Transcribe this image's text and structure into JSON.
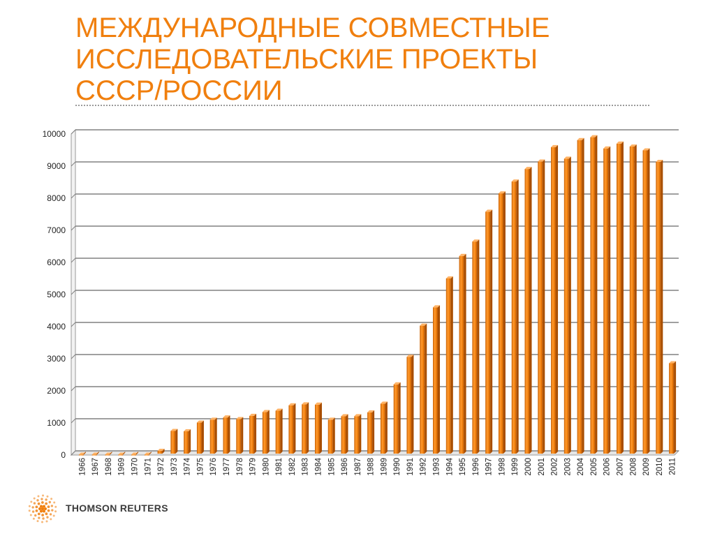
{
  "slide": {
    "title_lines": [
      "МЕЖДУНАРОДНЫЕ СОВМЕСТНЫЕ",
      "ИССЛЕДОВАТЕЛЬСКИЕ ПРОЕКТЫ",
      "СССР/РОССИИ"
    ],
    "brand": "THOMSON REUTERS",
    "accent_color": "#f07f0e",
    "logo_icon": "thomson-reuters-logo-icon"
  },
  "chart_data": {
    "type": "bar",
    "title": "",
    "xlabel": "",
    "ylabel": "",
    "ylim": [
      0,
      10000
    ],
    "yticks": [
      0,
      1000,
      2000,
      3000,
      4000,
      5000,
      6000,
      7000,
      8000,
      9000,
      10000
    ],
    "grid": true,
    "bar_color": "#f07f0e",
    "categories": [
      "1966",
      "1967",
      "1968",
      "1969",
      "1970",
      "1971",
      "1972",
      "1973",
      "1974",
      "1975",
      "1976",
      "1977",
      "1978",
      "1979",
      "1980",
      "1981",
      "1982",
      "1983",
      "1984",
      "1985",
      "1986",
      "1987",
      "1988",
      "1989",
      "1990",
      "1991",
      "1992",
      "1993",
      "1994",
      "1995",
      "1996",
      "1997",
      "1998",
      "1999",
      "2000",
      "2001",
      "2002",
      "2003",
      "2004",
      "2005",
      "2006",
      "2007",
      "2008",
      "2009",
      "2010",
      "2011"
    ],
    "values": [
      10,
      10,
      10,
      10,
      10,
      10,
      130,
      750,
      740,
      1010,
      1100,
      1170,
      1120,
      1220,
      1340,
      1380,
      1550,
      1580,
      1570,
      1100,
      1210,
      1210,
      1330,
      1600,
      2200,
      3060,
      4030,
      4600,
      5500,
      6200,
      6650,
      7580,
      8150,
      8520,
      8910,
      9140,
      9590,
      9230,
      9810,
      9900,
      9550,
      9700,
      9610,
      9490,
      9130,
      2860
    ]
  }
}
